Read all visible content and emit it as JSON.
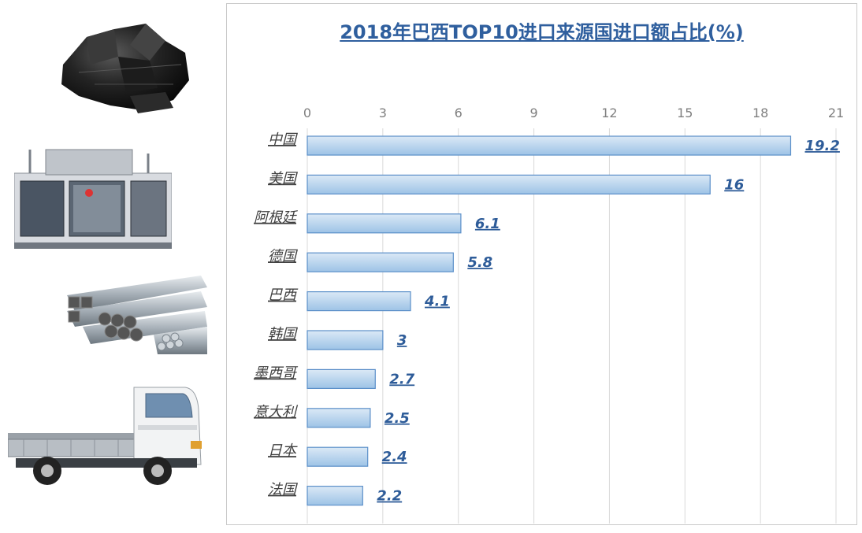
{
  "chart_data": {
    "type": "bar",
    "orientation": "horizontal",
    "title": "2018年巴西TOP10进口来源国进口额占比(%)",
    "categories": [
      "中国",
      "美国",
      "阿根廷",
      "德国",
      "巴西",
      "韩国",
      "墨西哥",
      "意大利",
      "日本",
      "法国"
    ],
    "values": [
      19.2,
      16,
      6.1,
      5.8,
      4.1,
      3,
      2.7,
      2.5,
      2.4,
      2.2
    ],
    "value_labels": [
      "19.2",
      "16",
      "6.1",
      "5.8",
      "4.1",
      "3",
      "2.7",
      "2.5",
      "2.4",
      "2.2"
    ],
    "x_ticks": [
      "0",
      "3",
      "6",
      "9",
      "12",
      "15",
      "18",
      "21"
    ],
    "xlim": [
      0,
      21
    ],
    "axis_position": "top",
    "grid": true,
    "bar_color": "#9dc3e6",
    "bar_color_light": "#dbe9f6",
    "bar_border": "#5b8fc9"
  },
  "illustrations": [
    "coal-lump",
    "blow-molding-machine",
    "steel-pipes",
    "flatbed-truck"
  ]
}
